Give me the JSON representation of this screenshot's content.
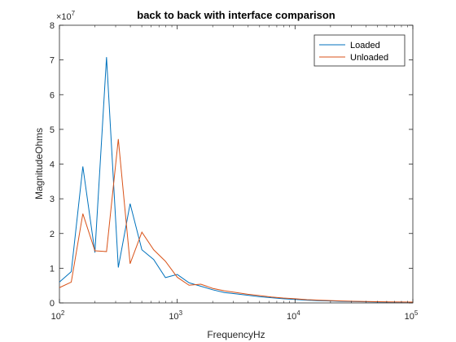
{
  "chart_data": {
    "type": "line",
    "title": "back to back with interface comparison",
    "xlabel": "FrequencyHz",
    "ylabel": "MagnitudeOhms",
    "xscale": "log",
    "xlim": [
      100,
      100000
    ],
    "ylim": [
      0,
      80000000
    ],
    "y_exponent_label": "×10",
    "y_exponent_power": "7",
    "x_ticks": [
      {
        "value": 100,
        "base": "10",
        "power": "2"
      },
      {
        "value": 1000,
        "base": "10",
        "power": "3"
      },
      {
        "value": 10000,
        "base": "10",
        "power": "4"
      },
      {
        "value": 100000,
        "base": "10",
        "power": "5"
      }
    ],
    "y_ticks": [
      {
        "value": 0,
        "label": "0"
      },
      {
        "value": 10000000,
        "label": "1"
      },
      {
        "value": 20000000,
        "label": "2"
      },
      {
        "value": 30000000,
        "label": "3"
      },
      {
        "value": 40000000,
        "label": "4"
      },
      {
        "value": 50000000,
        "label": "5"
      },
      {
        "value": 60000000,
        "label": "6"
      },
      {
        "value": 70000000,
        "label": "7"
      },
      {
        "value": 80000000,
        "label": "8"
      }
    ],
    "grid": false,
    "legend_position": "top-right",
    "series": [
      {
        "name": "Loaded",
        "color": "#0072BD",
        "x": [
          100,
          126,
          158,
          200,
          251,
          316,
          398,
          501,
          631,
          794,
          1000,
          1259,
          1585,
          1995,
          2512,
          3162,
          3981,
          5012,
          6310,
          7943,
          10000,
          12589,
          15849,
          19953,
          25119,
          31623,
          39811,
          50119,
          63096,
          79433,
          100000
        ],
        "y": [
          6000000,
          9000000,
          39300000,
          14500000,
          70800000,
          10200000,
          28600000,
          15300000,
          12500000,
          7300000,
          8200000,
          5800000,
          4800000,
          3800000,
          3000000,
          2600000,
          2200000,
          1800000,
          1500000,
          1200000,
          1000000,
          800000,
          650000,
          550000,
          450000,
          380000,
          320000,
          270000,
          230000,
          200000,
          180000
        ]
      },
      {
        "name": "Unloaded",
        "color": "#D95319",
        "x": [
          100,
          126,
          158,
          200,
          251,
          316,
          398,
          501,
          631,
          794,
          1000,
          1259,
          1585,
          1995,
          2512,
          3162,
          3981,
          5012,
          6310,
          7943,
          10000,
          12589,
          15849,
          19953,
          25119,
          31623,
          39811,
          50119,
          63096,
          79433,
          100000
        ],
        "y": [
          4400000,
          6000000,
          25700000,
          15000000,
          14800000,
          47200000,
          11300000,
          20400000,
          15300000,
          12000000,
          7400000,
          5100000,
          5400000,
          4200000,
          3500000,
          3000000,
          2500000,
          2100000,
          1700000,
          1400000,
          1200000,
          950000,
          800000,
          680000,
          570000,
          480000,
          400000,
          340000,
          290000,
          250000,
          220000
        ]
      }
    ]
  }
}
